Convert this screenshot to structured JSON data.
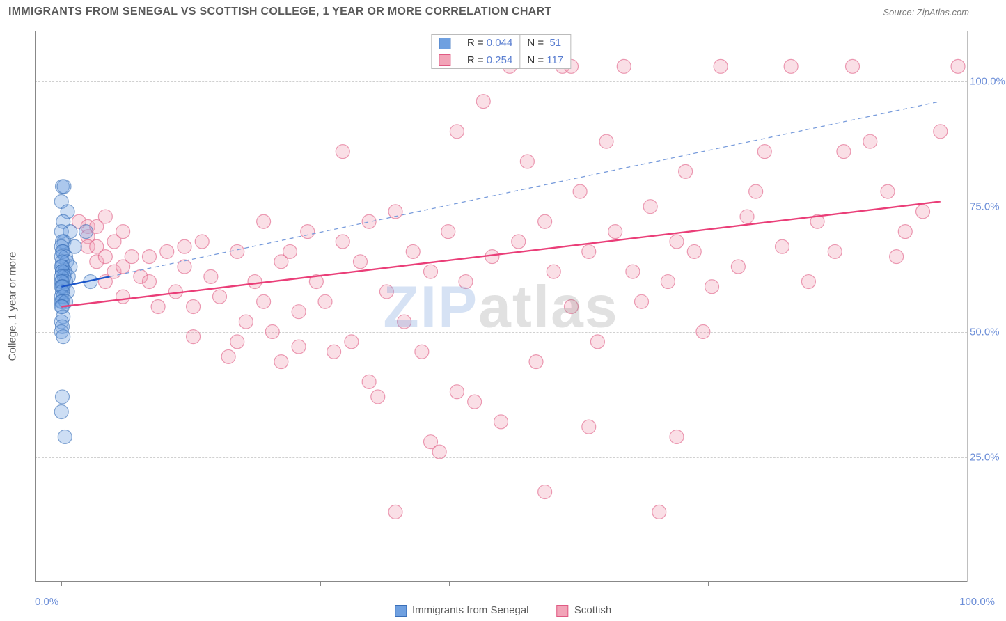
{
  "header": {
    "title": "IMMIGRANTS FROM SENEGAL VS SCOTTISH COLLEGE, 1 YEAR OR MORE CORRELATION CHART",
    "source": "Source: ZipAtlas.com"
  },
  "watermark": {
    "zip": "ZIP",
    "rest": "atlas"
  },
  "chart": {
    "type": "scatter",
    "background_color": "#ffffff",
    "grid_color": "#d0d0d0",
    "axis_color": "#888888",
    "tick_label_color": "#6d8fd8",
    "axis_title_color": "#5a5a5a",
    "xlim": [
      -3,
      103
    ],
    "ylim": [
      0,
      110
    ],
    "y_ticks": [
      25,
      50,
      75,
      100
    ],
    "y_tick_labels": [
      "25.0%",
      "50.0%",
      "75.0%",
      "100.0%"
    ],
    "x_ticks": [
      0,
      14.7,
      29.4,
      44.1,
      58.8,
      73.5,
      88.2,
      103
    ],
    "x_range_labels": {
      "left": "0.0%",
      "right": "100.0%"
    },
    "y_axis_title": "College, 1 year or more",
    "marker_radius": 10,
    "marker_opacity": 0.35,
    "marker_stroke_opacity": 0.6,
    "marker_stroke_width": 1.2,
    "series": [
      {
        "name": "Immigrants from Senegal",
        "color": "#6fa0e0",
        "stroke": "#3a6fb8",
        "r_value": "0.044",
        "n_value": "51",
        "trend": {
          "segments": [
            {
              "x1": 0,
              "y1": 59,
              "x2": 5.5,
              "y2": 61,
              "dash": "none",
              "width": 2.4,
              "color": "#1b55c9"
            },
            {
              "x1": 5.5,
              "y1": 61,
              "x2": 100,
              "y2": 96,
              "dash": "6,5",
              "width": 1.3,
              "color": "#7a9ddc"
            }
          ]
        },
        "points": [
          [
            0.1,
            79
          ],
          [
            0.3,
            79
          ],
          [
            0.0,
            76
          ],
          [
            0.7,
            74
          ],
          [
            0.2,
            72
          ],
          [
            1.0,
            70
          ],
          [
            0.0,
            70
          ],
          [
            2.8,
            70
          ],
          [
            0.3,
            68
          ],
          [
            0.1,
            68
          ],
          [
            1.5,
            67
          ],
          [
            0.0,
            67
          ],
          [
            0.2,
            66
          ],
          [
            0.1,
            66
          ],
          [
            0.5,
            65
          ],
          [
            0.0,
            65
          ],
          [
            0.6,
            64
          ],
          [
            0.1,
            64
          ],
          [
            1.0,
            63
          ],
          [
            0.1,
            63
          ],
          [
            0.0,
            63
          ],
          [
            0.4,
            62
          ],
          [
            0.1,
            62
          ],
          [
            0.1,
            62
          ],
          [
            0.8,
            61
          ],
          [
            0.3,
            61
          ],
          [
            0.0,
            61
          ],
          [
            0.5,
            60
          ],
          [
            0.1,
            60
          ],
          [
            0.0,
            60
          ],
          [
            3.3,
            60
          ],
          [
            0.2,
            59
          ],
          [
            0.0,
            59
          ],
          [
            0.1,
            59
          ],
          [
            0.7,
            58
          ],
          [
            0.1,
            58
          ],
          [
            0.0,
            57
          ],
          [
            0.2,
            57
          ],
          [
            0.1,
            56
          ],
          [
            0.0,
            56
          ],
          [
            0.5,
            56
          ],
          [
            0.1,
            55
          ],
          [
            0.0,
            55
          ],
          [
            0.2,
            53
          ],
          [
            0.0,
            52
          ],
          [
            0.1,
            51
          ],
          [
            0.0,
            50
          ],
          [
            0.2,
            49
          ],
          [
            0.1,
            37
          ],
          [
            0.0,
            34
          ],
          [
            0.4,
            29
          ]
        ]
      },
      {
        "name": "Scottish",
        "color": "#f2a4b8",
        "stroke": "#e05b84",
        "r_value": "0.254",
        "n_value": "117",
        "trend": {
          "segments": [
            {
              "x1": 0,
              "y1": 55,
              "x2": 100,
              "y2": 76,
              "dash": "none",
              "width": 2.4,
              "color": "#ea3e78"
            }
          ]
        },
        "points": [
          [
            2,
            72
          ],
          [
            3,
            71
          ],
          [
            3,
            69
          ],
          [
            3,
            67
          ],
          [
            4,
            71
          ],
          [
            4,
            67
          ],
          [
            4,
            64
          ],
          [
            5,
            73
          ],
          [
            5,
            65
          ],
          [
            5,
            60
          ],
          [
            6,
            68
          ],
          [
            6,
            62
          ],
          [
            7,
            70
          ],
          [
            7,
            63
          ],
          [
            7,
            57
          ],
          [
            8,
            65
          ],
          [
            9,
            61
          ],
          [
            10,
            60
          ],
          [
            10,
            65
          ],
          [
            11,
            55
          ],
          [
            12,
            66
          ],
          [
            13,
            58
          ],
          [
            14,
            63
          ],
          [
            14,
            67
          ],
          [
            15,
            49
          ],
          [
            15,
            55
          ],
          [
            16,
            68
          ],
          [
            17,
            61
          ],
          [
            18,
            57
          ],
          [
            19,
            45
          ],
          [
            20,
            48
          ],
          [
            20,
            66
          ],
          [
            21,
            52
          ],
          [
            22,
            60
          ],
          [
            23,
            72
          ],
          [
            23,
            56
          ],
          [
            24,
            50
          ],
          [
            25,
            64
          ],
          [
            25,
            44
          ],
          [
            26,
            66
          ],
          [
            27,
            54
          ],
          [
            27,
            47
          ],
          [
            28,
            70
          ],
          [
            29,
            60
          ],
          [
            30,
            56
          ],
          [
            31,
            46
          ],
          [
            32,
            68
          ],
          [
            32,
            86
          ],
          [
            33,
            48
          ],
          [
            34,
            64
          ],
          [
            35,
            40
          ],
          [
            35,
            72
          ],
          [
            36,
            37
          ],
          [
            37,
            58
          ],
          [
            38,
            74
          ],
          [
            38,
            14
          ],
          [
            39,
            52
          ],
          [
            40,
            66
          ],
          [
            41,
            46
          ],
          [
            42,
            62
          ],
          [
            42,
            28
          ],
          [
            43,
            26
          ],
          [
            44,
            70
          ],
          [
            45,
            38
          ],
          [
            45,
            90
          ],
          [
            46,
            60
          ],
          [
            47,
            36
          ],
          [
            48,
            96
          ],
          [
            49,
            65
          ],
          [
            50,
            32
          ],
          [
            51,
            103
          ],
          [
            52,
            68
          ],
          [
            53,
            84
          ],
          [
            54,
            44
          ],
          [
            55,
            72
          ],
          [
            55,
            18
          ],
          [
            56,
            62
          ],
          [
            57,
            103
          ],
          [
            58,
            55
          ],
          [
            59,
            78
          ],
          [
            60,
            66
          ],
          [
            60,
            31
          ],
          [
            61,
            48
          ],
          [
            62,
            88
          ],
          [
            63,
            70
          ],
          [
            64,
            103
          ],
          [
            65,
            62
          ],
          [
            66,
            56
          ],
          [
            67,
            75
          ],
          [
            68,
            14
          ],
          [
            69,
            60
          ],
          [
            70,
            68
          ],
          [
            70,
            29
          ],
          [
            71,
            82
          ],
          [
            72,
            66
          ],
          [
            73,
            50
          ],
          [
            74,
            59
          ],
          [
            75,
            103
          ],
          [
            77,
            63
          ],
          [
            78,
            73
          ],
          [
            79,
            78
          ],
          [
            80,
            86
          ],
          [
            82,
            67
          ],
          [
            83,
            103
          ],
          [
            85,
            60
          ],
          [
            86,
            72
          ],
          [
            88,
            66
          ],
          [
            89,
            86
          ],
          [
            90,
            103
          ],
          [
            92,
            88
          ],
          [
            94,
            78
          ],
          [
            95,
            65
          ],
          [
            96,
            70
          ],
          [
            98,
            74
          ],
          [
            100,
            90
          ],
          [
            102,
            103
          ],
          [
            58,
            103
          ]
        ]
      }
    ],
    "legend": {
      "series_1_label": "Immigrants from Senegal",
      "series_2_label": "Scottish",
      "r_prefix": "R =",
      "n_prefix": "N ="
    }
  }
}
